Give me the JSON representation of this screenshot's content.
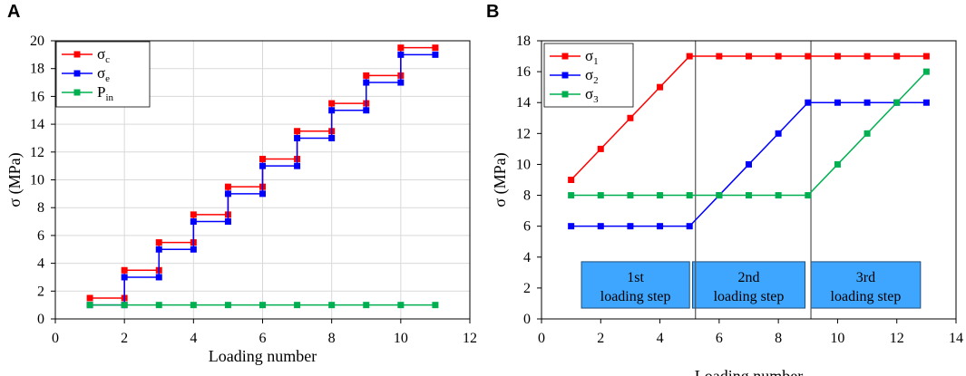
{
  "chart_data": [
    {
      "type": "line",
      "panel_label": "A",
      "xlabel": "Loading number",
      "ylabel": "σ (MPa)",
      "xlim": [
        0,
        12
      ],
      "ylim": [
        0,
        20
      ],
      "xticks": [
        0,
        2,
        4,
        6,
        8,
        10,
        12
      ],
      "yticks": [
        0,
        2,
        4,
        6,
        8,
        10,
        12,
        14,
        16,
        18,
        20
      ],
      "grid": true,
      "legend_position": "top-left",
      "series": [
        {
          "name": "σc",
          "label_main": "σ",
          "label_sub": "c",
          "color": "#ff0000",
          "step": true,
          "points": [
            [
              1,
              1.5
            ],
            [
              2,
              1.5
            ],
            [
              2,
              3.5
            ],
            [
              3,
              3.5
            ],
            [
              3,
              5.5
            ],
            [
              4,
              5.5
            ],
            [
              4,
              7.5
            ],
            [
              5,
              7.5
            ],
            [
              5,
              9.5
            ],
            [
              6,
              9.5
            ],
            [
              6,
              11.5
            ],
            [
              7,
              11.5
            ],
            [
              7,
              13.5
            ],
            [
              8,
              13.5
            ],
            [
              8,
              15.5
            ],
            [
              9,
              15.5
            ],
            [
              9,
              17.5
            ],
            [
              10,
              17.5
            ],
            [
              10,
              19.5
            ],
            [
              11,
              19.5
            ]
          ]
        },
        {
          "name": "σe",
          "label_main": "σ",
          "label_sub": "e",
          "color": "#0000ff",
          "step": true,
          "points": [
            [
              1,
              1
            ],
            [
              2,
              1
            ],
            [
              2,
              3
            ],
            [
              3,
              3
            ],
            [
              3,
              5
            ],
            [
              4,
              5
            ],
            [
              4,
              7
            ],
            [
              5,
              7
            ],
            [
              5,
              9
            ],
            [
              6,
              9
            ],
            [
              6,
              11
            ],
            [
              7,
              11
            ],
            [
              7,
              13
            ],
            [
              8,
              13
            ],
            [
              8,
              15
            ],
            [
              9,
              15
            ],
            [
              9,
              17
            ],
            [
              10,
              17
            ],
            [
              10,
              19
            ],
            [
              11,
              19
            ]
          ]
        },
        {
          "name": "Pin",
          "label_main": "P",
          "label_sub": "in",
          "color": "#00b050",
          "step": false,
          "points": [
            [
              1,
              1
            ],
            [
              2,
              1
            ],
            [
              3,
              1
            ],
            [
              4,
              1
            ],
            [
              5,
              1
            ],
            [
              6,
              1
            ],
            [
              7,
              1
            ],
            [
              8,
              1
            ],
            [
              9,
              1
            ],
            [
              10,
              1
            ],
            [
              11,
              1
            ]
          ]
        }
      ]
    },
    {
      "type": "line",
      "panel_label": "B",
      "xlabel": "Loading number",
      "ylabel": "σ (MPa)",
      "xlim": [
        0,
        14
      ],
      "ylim": [
        0,
        18
      ],
      "xticks": [
        0,
        2,
        4,
        6,
        8,
        10,
        12,
        14
      ],
      "yticks": [
        0,
        2,
        4,
        6,
        8,
        10,
        12,
        14,
        16,
        18
      ],
      "grid": false,
      "legend_position": "top-left",
      "dividers_x": [
        5.2,
        9.1
      ],
      "steps": [
        {
          "line1": "1st",
          "line2": "loading step",
          "x_start": 1.35,
          "x_end": 5.0
        },
        {
          "line1": "2nd",
          "line2": "loading step",
          "x_start": 5.1,
          "x_end": 8.9
        },
        {
          "line1": "3rd",
          "line2": "loading step",
          "x_start": 9.1,
          "x_end": 12.8
        }
      ],
      "step_box_y": [
        0.7,
        3.7
      ],
      "step_color": "#3ea6ff",
      "series": [
        {
          "name": "σ1",
          "label_main": "σ",
          "label_sub": "1",
          "color": "#ff0000",
          "step": false,
          "points": [
            [
              1,
              9
            ],
            [
              2,
              11
            ],
            [
              3,
              13
            ],
            [
              4,
              15
            ],
            [
              5,
              17
            ],
            [
              6,
              17
            ],
            [
              7,
              17
            ],
            [
              8,
              17
            ],
            [
              9,
              17
            ],
            [
              10,
              17
            ],
            [
              11,
              17
            ],
            [
              12,
              17
            ],
            [
              13,
              17
            ]
          ]
        },
        {
          "name": "σ2",
          "label_main": "σ",
          "label_sub": "2",
          "color": "#0000ff",
          "step": false,
          "points": [
            [
              1,
              6
            ],
            [
              2,
              6
            ],
            [
              3,
              6
            ],
            [
              4,
              6
            ],
            [
              5,
              6
            ],
            [
              6,
              8
            ],
            [
              7,
              10
            ],
            [
              8,
              12
            ],
            [
              9,
              14
            ],
            [
              10,
              14
            ],
            [
              11,
              14
            ],
            [
              12,
              14
            ],
            [
              13,
              14
            ]
          ]
        },
        {
          "name": "σ3",
          "label_main": "σ",
          "label_sub": "3",
          "color": "#00b050",
          "step": false,
          "points": [
            [
              1,
              8
            ],
            [
              2,
              8
            ],
            [
              3,
              8
            ],
            [
              4,
              8
            ],
            [
              5,
              8
            ],
            [
              6,
              8
            ],
            [
              7,
              8
            ],
            [
              8,
              8
            ],
            [
              9,
              8
            ],
            [
              10,
              10
            ],
            [
              11,
              12
            ],
            [
              12,
              14
            ],
            [
              13,
              16
            ]
          ]
        }
      ]
    }
  ]
}
